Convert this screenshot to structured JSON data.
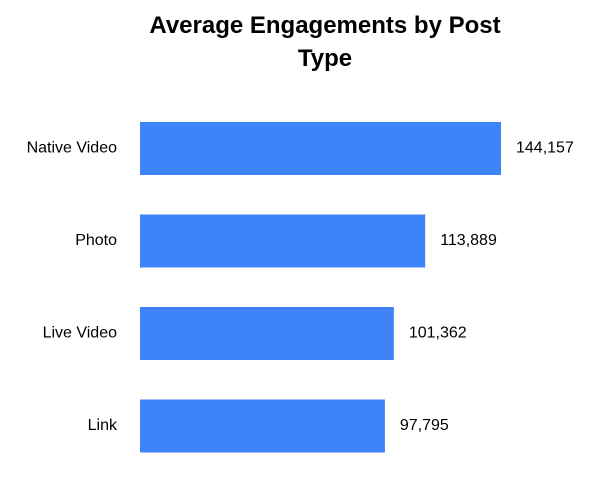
{
  "chart_data": {
    "type": "bar",
    "orientation": "horizontal",
    "title": "Average Engagements by Post Type",
    "categories": [
      "Native Video",
      "Photo",
      "Live Video",
      "Link"
    ],
    "values": [
      144157,
      113889,
      101362,
      97795
    ],
    "value_labels": [
      "144,157",
      "113,889",
      "101,362",
      "97,795"
    ],
    "color": "#3f83f8"
  }
}
